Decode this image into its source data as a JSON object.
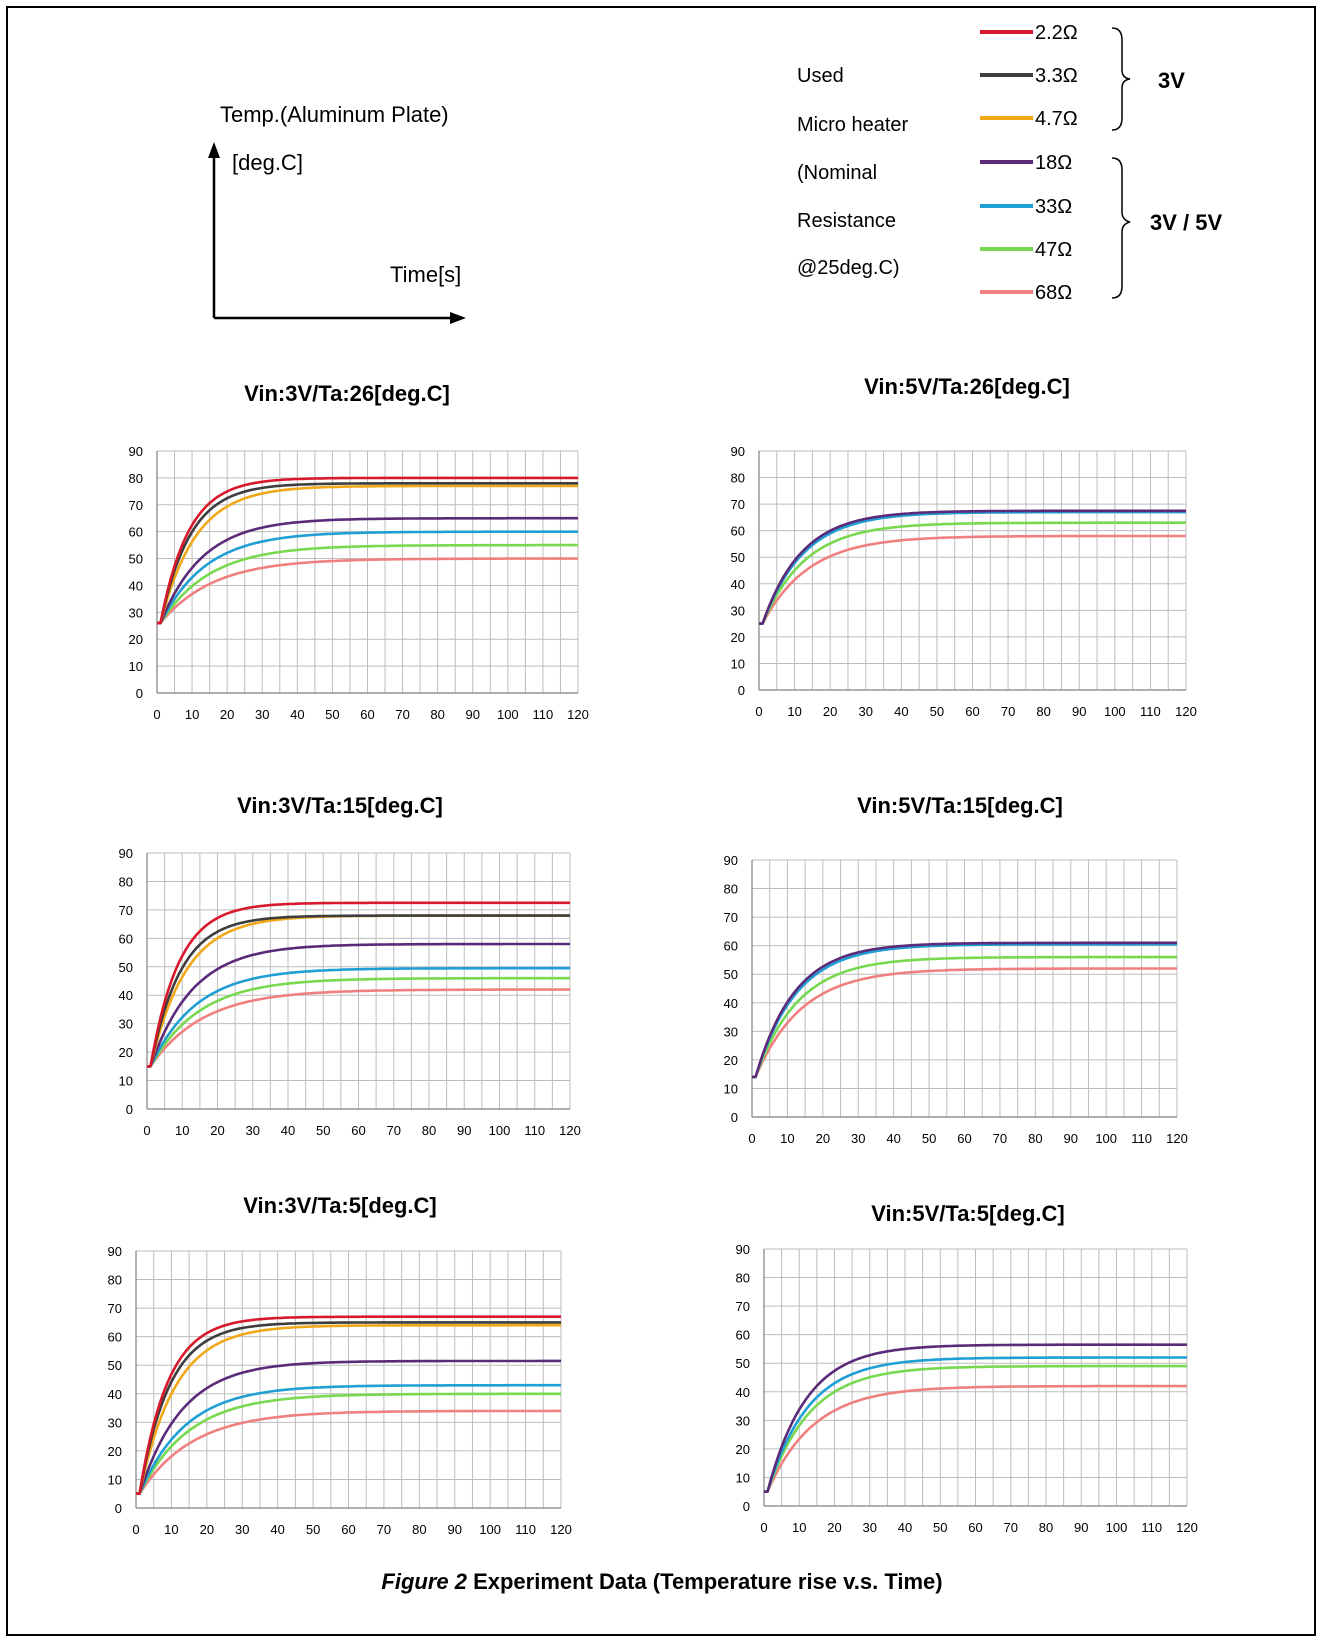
{
  "schematic": {
    "y_axis_label_line1": "Temp.(Aluminum Plate)",
    "y_axis_label_line2": "[deg.C]",
    "x_axis_label": "Time[s]"
  },
  "legend": {
    "description_lines": [
      "Used",
      "Micro heater",
      "(Nominal",
      "Resistance",
      "@25deg.C)"
    ],
    "group_3v_label": "3V",
    "group_3v5v_label": "3V / 5V",
    "entries": [
      {
        "label": "2.2Ω",
        "color": "#d7192b"
      },
      {
        "label": "3.3Ω",
        "color": "#3d3d3d"
      },
      {
        "label": "4.7Ω",
        "color": "#f0a818"
      },
      {
        "label": "18Ω",
        "color": "#5b2a78"
      },
      {
        "label": "33Ω",
        "color": "#1f9fd4"
      },
      {
        "label": "47Ω",
        "color": "#78d850"
      },
      {
        "label": "68Ω",
        "color": "#f08080"
      }
    ]
  },
  "caption": {
    "figure_label": "Figure 2",
    "text": " Experiment Data (Temperature rise v.s. Time)"
  },
  "series_colors": {
    "2.2Ω": "#d7192b",
    "3.3Ω": "#3d3d3d",
    "4.7Ω": "#f0a818",
    "18Ω": "#5b2a78",
    "33Ω": "#1f9fd4",
    "47Ω": "#78d850",
    "68Ω": "#f08080"
  },
  "chart_data": [
    {
      "type": "line",
      "title": "Vin:3V/Ta:26[deg.C]",
      "xlim": [
        0,
        120
      ],
      "ylim": [
        0,
        90
      ],
      "xstep": 10,
      "ystep": 10,
      "grid": true,
      "series": [
        {
          "name": "2.2Ω",
          "start": 26,
          "final": 80,
          "tau": 8
        },
        {
          "name": "3.3Ω",
          "start": 26,
          "final": 78,
          "tau": 8.5
        },
        {
          "name": "4.7Ω",
          "start": 26,
          "final": 77,
          "tau": 10
        },
        {
          "name": "18Ω",
          "start": 26,
          "final": 65,
          "tau": 12
        },
        {
          "name": "33Ω",
          "start": 26,
          "final": 60,
          "tau": 13
        },
        {
          "name": "47Ω",
          "start": 26,
          "final": 55,
          "tau": 14
        },
        {
          "name": "68Ω",
          "start": 26,
          "final": 50,
          "tau": 15
        }
      ]
    },
    {
      "type": "line",
      "title": "Vin:5V/Ta:26[deg.C]",
      "xlim": [
        0,
        120
      ],
      "ylim": [
        0,
        90
      ],
      "xstep": 10,
      "ystep": 10,
      "grid": true,
      "series": [
        {
          "name": "18Ω",
          "start": 25,
          "final": 67.5,
          "tau": 11
        },
        {
          "name": "33Ω",
          "start": 25,
          "final": 67,
          "tau": 11.5
        },
        {
          "name": "47Ω",
          "start": 25,
          "final": 63,
          "tau": 12
        },
        {
          "name": "68Ω",
          "start": 25,
          "final": 58,
          "tau": 13
        }
      ]
    },
    {
      "type": "line",
      "title": "Vin:3V/Ta:15[deg.C]",
      "xlim": [
        0,
        120
      ],
      "ylim": [
        0,
        90
      ],
      "xstep": 10,
      "ystep": 10,
      "grid": true,
      "series": [
        {
          "name": "2.2Ω",
          "start": 15,
          "final": 72.5,
          "tau": 8
        },
        {
          "name": "3.3Ω",
          "start": 15,
          "final": 68,
          "tau": 8.5
        },
        {
          "name": "4.7Ω",
          "start": 15,
          "final": 68,
          "tau": 10
        },
        {
          "name": "18Ω",
          "start": 15,
          "final": 58,
          "tau": 12
        },
        {
          "name": "33Ω",
          "start": 15,
          "final": 49.5,
          "tau": 13
        },
        {
          "name": "47Ω",
          "start": 15,
          "final": 46,
          "tau": 14
        },
        {
          "name": "68Ω",
          "start": 15,
          "final": 42,
          "tau": 15
        }
      ]
    },
    {
      "type": "line",
      "title": "Vin:5V/Ta:15[deg.C]",
      "xlim": [
        0,
        120
      ],
      "ylim": [
        0,
        90
      ],
      "xstep": 10,
      "ystep": 10,
      "grid": true,
      "series": [
        {
          "name": "18Ω",
          "start": 14,
          "final": 61,
          "tau": 11
        },
        {
          "name": "33Ω",
          "start": 14,
          "final": 60.5,
          "tau": 11.5
        },
        {
          "name": "47Ω",
          "start": 14,
          "final": 56,
          "tau": 12
        },
        {
          "name": "68Ω",
          "start": 14,
          "final": 52,
          "tau": 13
        }
      ]
    },
    {
      "type": "line",
      "title": "Vin:3V/Ta:5[deg.C]",
      "xlim": [
        0,
        120
      ],
      "ylim": [
        0,
        90
      ],
      "xstep": 10,
      "ystep": 10,
      "grid": true,
      "series": [
        {
          "name": "2.2Ω",
          "start": 5,
          "final": 67,
          "tau": 8
        },
        {
          "name": "3.3Ω",
          "start": 5,
          "final": 65,
          "tau": 8.5
        },
        {
          "name": "4.7Ω",
          "start": 5,
          "final": 64,
          "tau": 10
        },
        {
          "name": "18Ω",
          "start": 5,
          "final": 51.5,
          "tau": 12
        },
        {
          "name": "33Ω",
          "start": 5,
          "final": 43,
          "tau": 13
        },
        {
          "name": "47Ω",
          "start": 5,
          "final": 40,
          "tau": 14
        },
        {
          "name": "68Ω",
          "start": 5,
          "final": 34,
          "tau": 15
        }
      ]
    },
    {
      "type": "line",
      "title": "Vin:5V/Ta:5[deg.C]",
      "xlim": [
        0,
        120
      ],
      "ylim": [
        0,
        90
      ],
      "xstep": 10,
      "ystep": 10,
      "grid": true,
      "series": [
        {
          "name": "18Ω",
          "start": 5,
          "final": 56.5,
          "tau": 11
        },
        {
          "name": "33Ω",
          "start": 5,
          "final": 52,
          "tau": 11.5
        },
        {
          "name": "47Ω",
          "start": 5,
          "final": 49,
          "tau": 12
        },
        {
          "name": "68Ω",
          "start": 5,
          "final": 42,
          "tau": 13
        }
      ]
    }
  ]
}
